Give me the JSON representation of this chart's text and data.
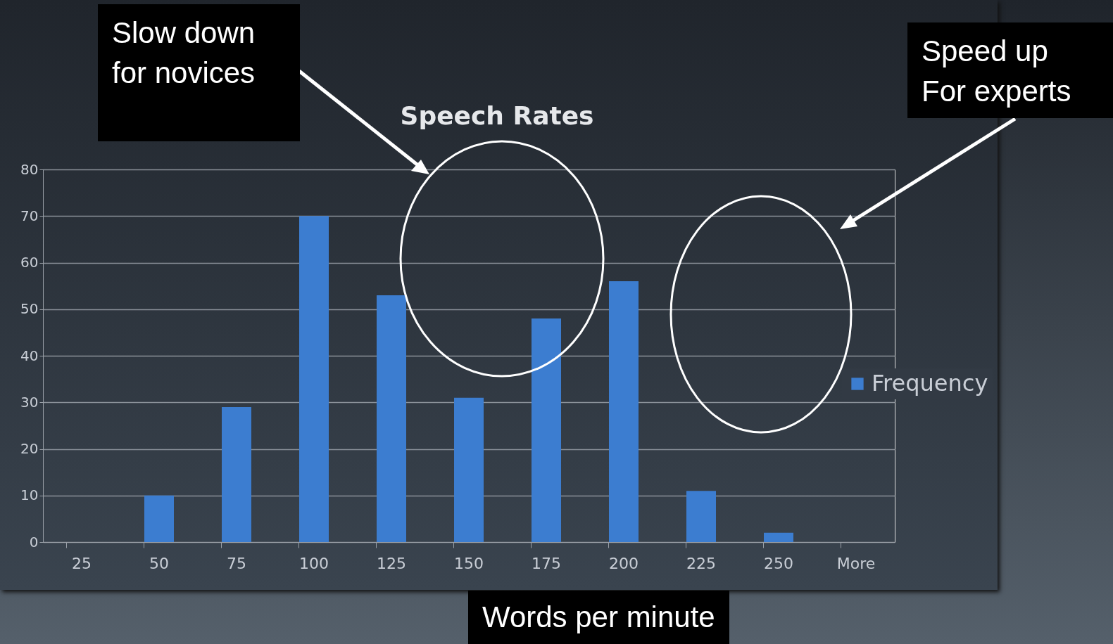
{
  "chart_data": {
    "type": "bar",
    "title": "Speech Rates",
    "xlabel": "Words per minute",
    "categories": [
      "25",
      "50",
      "75",
      "100",
      "125",
      "150",
      "175",
      "200",
      "225",
      "250",
      "More"
    ],
    "series": [
      {
        "name": "Frequency",
        "color": "#3c7dd0",
        "values": [
          0,
          10,
          29,
          70,
          53,
          31,
          48,
          56,
          11,
          2,
          0
        ]
      }
    ],
    "ylim": [
      0,
      80
    ],
    "yticks": [
      0,
      10,
      20,
      30,
      40,
      50,
      60,
      70,
      80
    ],
    "grid": "y",
    "legend": "right",
    "annotations": [
      "Slow down for novices",
      "Speed up For experts"
    ]
  }
}
